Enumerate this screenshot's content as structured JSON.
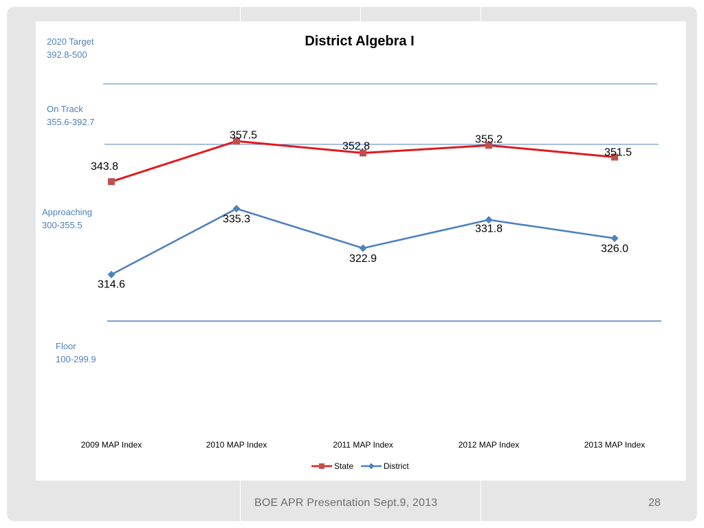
{
  "footer": {
    "text": "BOE APR Presentation Sept.9, 2013",
    "page_number": "28"
  },
  "chart_data": {
    "type": "line",
    "title": "District Algebra I",
    "categories": [
      "2009 MAP Index",
      "2010 MAP Index",
      "2011 MAP Index",
      "2012 MAP Index",
      "2013 MAP Index"
    ],
    "series": [
      {
        "name": "State",
        "values": [
          343.8,
          357.5,
          352.8,
          355.2,
          351.5
        ],
        "labels": [
          "343.8",
          "357.5",
          "352.8",
          "355.2",
          "351.5"
        ],
        "color": "#e0191e",
        "marker_color": "#c0504d",
        "marker": "square"
      },
      {
        "name": "District",
        "values": [
          314.6,
          335.3,
          322.9,
          331.8,
          326.0
        ],
        "labels": [
          "314.6",
          "335.3",
          "322.9",
          "331.8",
          "326.0"
        ],
        "color": "#4f81bd",
        "marker_color": "#4f81bd",
        "marker": "diamond"
      }
    ],
    "bands": [
      {
        "name": "2020 Target",
        "range": "392.8-500"
      },
      {
        "name": "On Track",
        "range": "355.6-392.7"
      },
      {
        "name": "Approaching",
        "range": "300-355.5"
      },
      {
        "name": "Floor",
        "range": "100-299.9"
      }
    ],
    "thresholds": [
      392.7,
      355.5,
      300
    ],
    "threshold_color": "#4f81bd",
    "band_label_color": "#4f81bd",
    "legend_position": "bottom"
  }
}
